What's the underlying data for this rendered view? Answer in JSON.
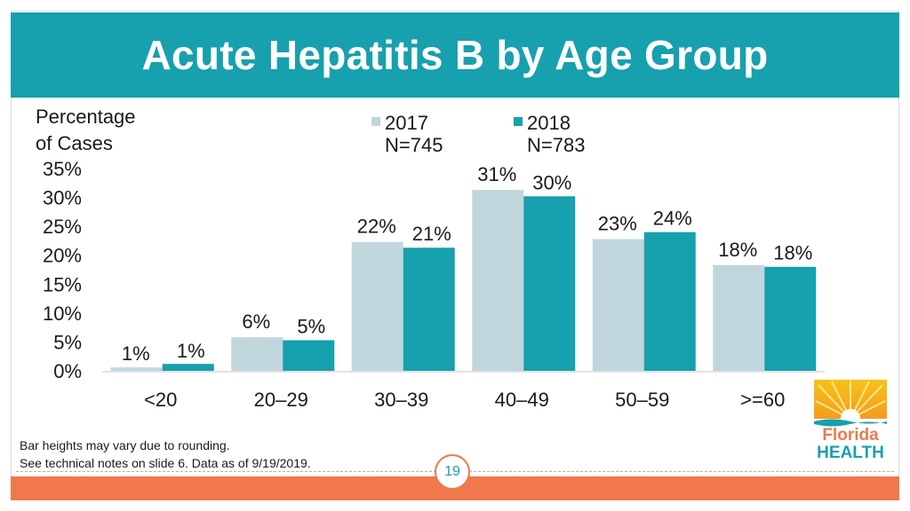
{
  "title": "Acute Hepatitis B by Age Group",
  "footnote": {
    "line1": "Bar heights may vary due to rounding.",
    "line2": "See technical notes on slide 6. Data as of 9/19/2019."
  },
  "page_number": "19",
  "logo": {
    "name": "Florida HEALTH",
    "icon": "sun-logo-icon"
  },
  "colors": {
    "title_bg": "#17a0ad",
    "footer": "#f0784c",
    "s2017": "#bfd6dd",
    "s2018": "#17a0ad"
  },
  "chart_data": {
    "type": "bar",
    "title": "",
    "ylabel_lines": [
      "Percentage",
      "of Cases"
    ],
    "xlabel": "",
    "ylim": [
      0,
      35
    ],
    "yticks": [
      0,
      5,
      10,
      15,
      20,
      25,
      30,
      35
    ],
    "ytick_labels": [
      "0%",
      "5%",
      "10%",
      "15%",
      "20%",
      "25%",
      "30%",
      "35%"
    ],
    "grid": false,
    "legend_position": "top-center",
    "categories": [
      "<20",
      "20–29",
      "30–39",
      "40–49",
      "50–59",
      ">=60"
    ],
    "series": [
      {
        "name": "2017",
        "n_label": "N=745",
        "values": [
          0.6,
          5.8,
          22.3,
          31.3,
          22.8,
          18.3
        ],
        "labels": [
          "1%",
          "6%",
          "22%",
          "31%",
          "23%",
          "18%"
        ]
      },
      {
        "name": "2018",
        "n_label": "N=783",
        "values": [
          1.2,
          5.3,
          21.3,
          30.2,
          24.0,
          18.0
        ],
        "labels": [
          "1%",
          "5%",
          "21%",
          "30%",
          "24%",
          "18%"
        ]
      }
    ]
  }
}
